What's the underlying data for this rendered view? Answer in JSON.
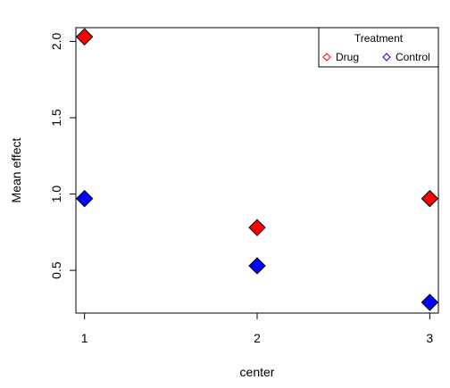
{
  "chart_data": {
    "type": "scatter",
    "xlabel": "center",
    "ylabel": "Mean effect",
    "x_ticks": [
      1,
      2,
      3
    ],
    "y_ticks": [
      "0.5",
      "1.0",
      "1.5",
      "2.0"
    ],
    "xlim": [
      0.95,
      3.05
    ],
    "ylim": [
      0.22,
      2.09
    ],
    "grid": false,
    "legend": {
      "title": "Treatment",
      "placement": "top-right",
      "entries": [
        "Drug",
        "Control"
      ]
    },
    "series": [
      {
        "name": "Drug",
        "color": "#ff0000",
        "marker": "diamond",
        "x": [
          1,
          2,
          3
        ],
        "y": [
          2.03,
          0.78,
          0.97
        ]
      },
      {
        "name": "Control",
        "color": "#0000ff",
        "marker": "diamond",
        "x": [
          1,
          2,
          3
        ],
        "y": [
          0.97,
          0.53,
          0.29
        ]
      }
    ]
  }
}
